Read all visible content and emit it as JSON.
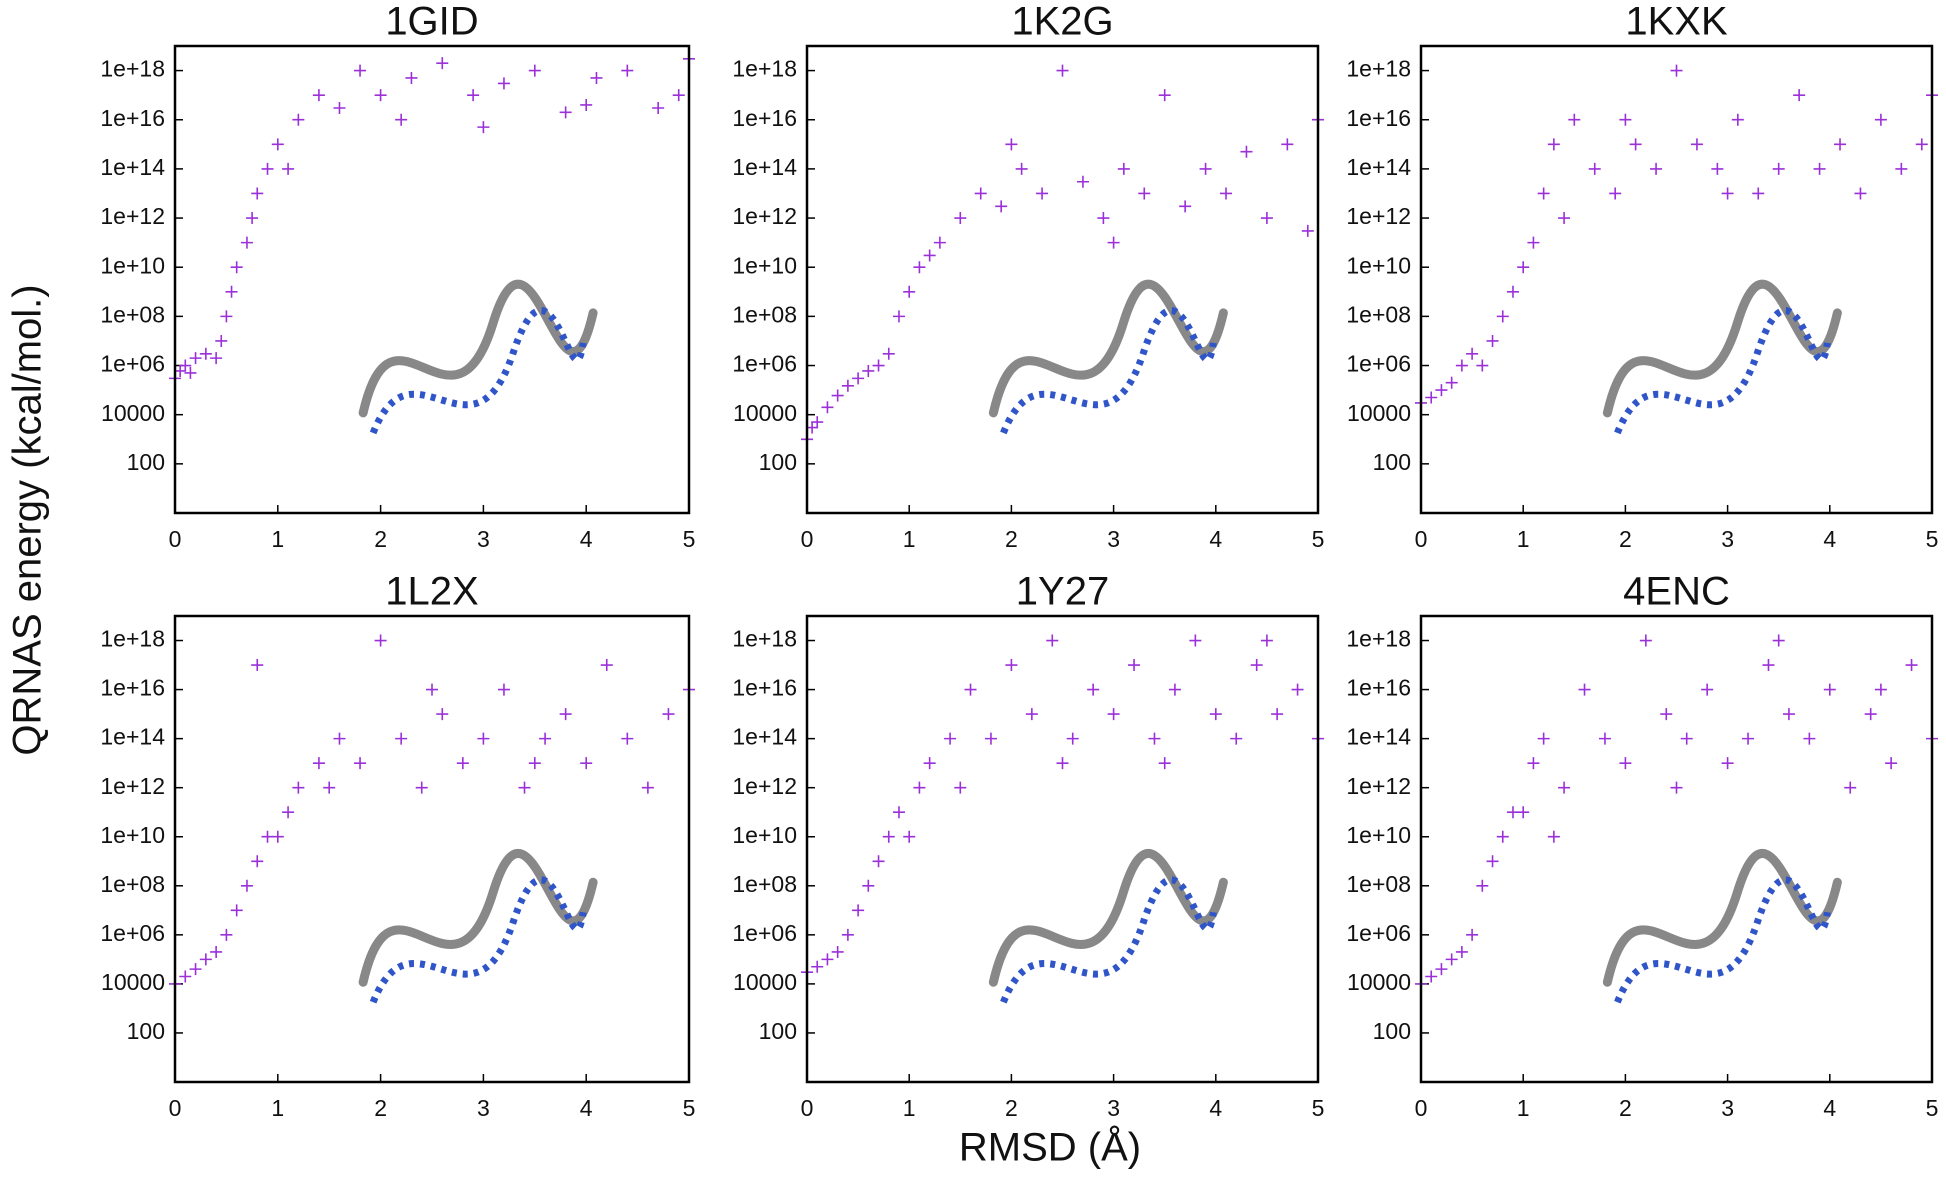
{
  "figure": {
    "xlabel": "RMSD (Å)",
    "ylabel": "QRNAS energy (kcal/mol.)"
  },
  "chart_data": [
    {
      "type": "scatter",
      "title": "1GID",
      "color": "#9b30d9",
      "marker": "+",
      "ylog": true,
      "xlim": [
        0,
        5
      ],
      "ylim": [
        1,
        1e+19
      ],
      "xticks": [
        0,
        1,
        2,
        3,
        4,
        5
      ],
      "yticks": [
        100,
        10000,
        {
          "value": 1000000.0,
          "label": "1e+06"
        },
        {
          "value": 100000000.0,
          "label": "1e+08"
        },
        {
          "value": 10000000000.0,
          "label": "1e+10"
        },
        {
          "value": 1000000000000.0,
          "label": "1e+12"
        },
        {
          "value": 100000000000000.0,
          "label": "1e+14"
        },
        {
          "value": 1e+16,
          "label": "1e+16"
        },
        {
          "value": 1e+18,
          "label": "1e+18"
        }
      ],
      "x": [
        0,
        0.05,
        0.1,
        0.15,
        0.2,
        0.3,
        0.4,
        0.45,
        0.5,
        0.55,
        0.6,
        0.7,
        0.75,
        0.8,
        0.9,
        1.0,
        1.1,
        1.2,
        1.4,
        1.6,
        1.8,
        2.0,
        2.3,
        2.6,
        2.9,
        3.2,
        3.5,
        3.8,
        4.1,
        4.4,
        4.7,
        4.9,
        5.0,
        2.2,
        3.0,
        4.0
      ],
      "values": [
        300000.0,
        600000.0,
        1000000.0,
        500000.0,
        2000000.0,
        3000000.0,
        2000000.0,
        10000000.0,
        100000000.0,
        1000000000.0,
        10000000000.0,
        100000000000.0,
        1000000000000.0,
        10000000000000.0,
        100000000000000.0,
        1000000000000000.0,
        100000000000000.0,
        1e+16,
        1e+17,
        3e+16,
        1e+18,
        1e+17,
        5e+17,
        2e+18,
        1e+17,
        3e+17,
        1e+18,
        2e+16,
        5e+17,
        1e+18,
        3e+16,
        1e+17,
        3e+18,
        1e+16,
        5000000000000000.0,
        4e+16
      ]
    },
    {
      "type": "scatter",
      "title": "1K2G",
      "color": "#9b30d9",
      "marker": "+",
      "ylog": true,
      "xlim": [
        0,
        5
      ],
      "ylim": [
        1,
        1e+19
      ],
      "xticks": [
        0,
        1,
        2,
        3,
        4,
        5
      ],
      "yticks": [
        100,
        10000,
        {
          "value": 1000000.0,
          "label": "1e+06"
        },
        {
          "value": 100000000.0,
          "label": "1e+08"
        },
        {
          "value": 10000000000.0,
          "label": "1e+10"
        },
        {
          "value": 1000000000000.0,
          "label": "1e+12"
        },
        {
          "value": 100000000000000.0,
          "label": "1e+14"
        },
        {
          "value": 1e+16,
          "label": "1e+16"
        },
        {
          "value": 1e+18,
          "label": "1e+18"
        }
      ],
      "x": [
        0,
        0.05,
        0.1,
        0.2,
        0.3,
        0.4,
        0.5,
        0.6,
        0.7,
        0.8,
        0.9,
        1.0,
        1.1,
        1.2,
        1.3,
        1.5,
        1.7,
        1.9,
        2.1,
        2.3,
        2.5,
        2.7,
        2.9,
        3.1,
        3.3,
        3.5,
        3.7,
        3.9,
        4.1,
        4.3,
        4.5,
        4.7,
        4.9,
        5.0,
        2.0,
        3.0
      ],
      "values": [
        1000,
        3000,
        5000,
        20000.0,
        60000.0,
        150000.0,
        300000.0,
        600000.0,
        1000000.0,
        3000000.0,
        100000000.0,
        1000000000.0,
        10000000000.0,
        30000000000.0,
        100000000000.0,
        1000000000000.0,
        10000000000000.0,
        3000000000000.0,
        100000000000000.0,
        10000000000000.0,
        1e+18,
        30000000000000.0,
        1000000000000.0,
        100000000000000.0,
        10000000000000.0,
        1e+17,
        3000000000000.0,
        100000000000000.0,
        10000000000000.0,
        500000000000000.0,
        1000000000000.0,
        1000000000000000.0,
        300000000000.0,
        1e+16,
        1000000000000000.0,
        100000000000.0
      ]
    },
    {
      "type": "scatter",
      "title": "1KXK",
      "color": "#9b30d9",
      "marker": "+",
      "ylog": true,
      "xlim": [
        0,
        5
      ],
      "ylim": [
        1,
        1e+19
      ],
      "xticks": [
        0,
        1,
        2,
        3,
        4,
        5
      ],
      "yticks": [
        100,
        10000,
        {
          "value": 1000000.0,
          "label": "1e+06"
        },
        {
          "value": 100000000.0,
          "label": "1e+08"
        },
        {
          "value": 10000000000.0,
          "label": "1e+10"
        },
        {
          "value": 1000000000000.0,
          "label": "1e+12"
        },
        {
          "value": 100000000000000.0,
          "label": "1e+14"
        },
        {
          "value": 1e+16,
          "label": "1e+16"
        },
        {
          "value": 1e+18,
          "label": "1e+18"
        }
      ],
      "x": [
        0,
        0.1,
        0.2,
        0.3,
        0.4,
        0.5,
        0.6,
        0.7,
        0.8,
        0.9,
        1.0,
        1.1,
        1.2,
        1.3,
        1.5,
        1.7,
        1.9,
        2.1,
        2.3,
        2.5,
        2.7,
        2.9,
        3.1,
        3.3,
        3.5,
        3.7,
        3.9,
        4.1,
        4.3,
        4.5,
        4.7,
        4.9,
        5.0,
        1.4,
        2.0,
        3.0
      ],
      "values": [
        30000.0,
        50000.0,
        100000.0,
        200000.0,
        1000000.0,
        3000000.0,
        1000000.0,
        10000000.0,
        100000000.0,
        1000000000.0,
        10000000000.0,
        100000000000.0,
        10000000000000.0,
        1000000000000000.0,
        1e+16,
        100000000000000.0,
        10000000000000.0,
        1000000000000000.0,
        100000000000000.0,
        1e+18,
        1000000000000000.0,
        100000000000000.0,
        1e+16,
        10000000000000.0,
        100000000000000.0,
        1e+17,
        100000000000000.0,
        1000000000000000.0,
        10000000000000.0,
        1e+16,
        100000000000000.0,
        1000000000000000.0,
        1e+17,
        1000000000000.0,
        1e+16,
        10000000000000.0
      ]
    },
    {
      "type": "scatter",
      "title": "1L2X",
      "color": "#9b30d9",
      "marker": "+",
      "ylog": true,
      "xlim": [
        0,
        5
      ],
      "ylim": [
        1,
        1e+19
      ],
      "xticks": [
        0,
        1,
        2,
        3,
        4,
        5
      ],
      "yticks": [
        100,
        10000,
        {
          "value": 1000000.0,
          "label": "1e+06"
        },
        {
          "value": 100000000.0,
          "label": "1e+08"
        },
        {
          "value": 10000000000.0,
          "label": "1e+10"
        },
        {
          "value": 1000000000000.0,
          "label": "1e+12"
        },
        {
          "value": 100000000000000.0,
          "label": "1e+14"
        },
        {
          "value": 1e+16,
          "label": "1e+16"
        },
        {
          "value": 1e+18,
          "label": "1e+18"
        }
      ],
      "x": [
        0,
        0.1,
        0.2,
        0.3,
        0.4,
        0.5,
        0.6,
        0.7,
        0.8,
        0.9,
        1.0,
        1.1,
        1.2,
        1.4,
        1.6,
        1.8,
        2.0,
        2.2,
        2.4,
        2.6,
        2.8,
        3.0,
        3.2,
        3.4,
        3.6,
        3.8,
        4.0,
        4.2,
        4.4,
        4.6,
        4.8,
        5.0,
        0.8,
        1.5,
        2.5,
        3.5
      ],
      "values": [
        10000.0,
        20000.0,
        40000.0,
        100000.0,
        200000.0,
        1000000.0,
        10000000.0,
        100000000.0,
        1000000000.0,
        10000000000.0,
        10000000000.0,
        100000000000.0,
        1000000000000.0,
        10000000000000.0,
        100000000000000.0,
        10000000000000.0,
        1e+18,
        100000000000000.0,
        1000000000000.0,
        1000000000000000.0,
        10000000000000.0,
        100000000000000.0,
        1e+16,
        1000000000000.0,
        100000000000000.0,
        1000000000000000.0,
        10000000000000.0,
        1e+17,
        100000000000000.0,
        1000000000000.0,
        1000000000000000.0,
        1e+16,
        1e+17,
        1000000000000.0,
        1e+16,
        10000000000000.0
      ]
    },
    {
      "type": "scatter",
      "title": "1Y27",
      "color": "#9b30d9",
      "marker": "+",
      "ylog": true,
      "xlim": [
        0,
        5
      ],
      "ylim": [
        1,
        1e+19
      ],
      "xticks": [
        0,
        1,
        2,
        3,
        4,
        5
      ],
      "yticks": [
        100,
        10000,
        {
          "value": 1000000.0,
          "label": "1e+06"
        },
        {
          "value": 100000000.0,
          "label": "1e+08"
        },
        {
          "value": 10000000000.0,
          "label": "1e+10"
        },
        {
          "value": 1000000000000.0,
          "label": "1e+12"
        },
        {
          "value": 100000000000000.0,
          "label": "1e+14"
        },
        {
          "value": 1e+16,
          "label": "1e+16"
        },
        {
          "value": 1e+18,
          "label": "1e+18"
        }
      ],
      "x": [
        0,
        0.1,
        0.2,
        0.3,
        0.4,
        0.5,
        0.6,
        0.7,
        0.8,
        0.9,
        1.0,
        1.1,
        1.2,
        1.4,
        1.6,
        1.8,
        2.0,
        2.2,
        2.4,
        2.6,
        2.8,
        3.0,
        3.2,
        3.4,
        3.6,
        3.8,
        4.0,
        4.2,
        4.4,
        4.6,
        4.8,
        5.0,
        1.5,
        2.5,
        3.5,
        4.5
      ],
      "values": [
        30000.0,
        50000.0,
        100000.0,
        200000.0,
        1000000.0,
        10000000.0,
        100000000.0,
        1000000000.0,
        10000000000.0,
        100000000000.0,
        10000000000.0,
        1000000000000.0,
        10000000000000.0,
        100000000000000.0,
        1e+16,
        100000000000000.0,
        1e+17,
        1000000000000000.0,
        1e+18,
        100000000000000.0,
        1e+16,
        1000000000000000.0,
        1e+17,
        100000000000000.0,
        1e+16,
        1e+18,
        1000000000000000.0,
        100000000000000.0,
        1e+17,
        1000000000000000.0,
        1e+16,
        100000000000000.0,
        1000000000000.0,
        10000000000000.0,
        10000000000000.0,
        1e+18
      ]
    },
    {
      "type": "scatter",
      "title": "4ENC",
      "color": "#9b30d9",
      "marker": "+",
      "ylog": true,
      "xlim": [
        0,
        5
      ],
      "ylim": [
        1,
        1e+19
      ],
      "xticks": [
        0,
        1,
        2,
        3,
        4,
        5
      ],
      "yticks": [
        100,
        10000,
        {
          "value": 1000000.0,
          "label": "1e+06"
        },
        {
          "value": 100000000.0,
          "label": "1e+08"
        },
        {
          "value": 10000000000.0,
          "label": "1e+10"
        },
        {
          "value": 1000000000000.0,
          "label": "1e+12"
        },
        {
          "value": 100000000000000.0,
          "label": "1e+14"
        },
        {
          "value": 1e+16,
          "label": "1e+16"
        },
        {
          "value": 1e+18,
          "label": "1e+18"
        }
      ],
      "x": [
        0,
        0.1,
        0.2,
        0.3,
        0.4,
        0.5,
        0.6,
        0.7,
        0.8,
        0.9,
        1.0,
        1.1,
        1.2,
        1.4,
        1.6,
        1.8,
        2.0,
        2.2,
        2.4,
        2.6,
        2.8,
        3.0,
        3.2,
        3.4,
        3.6,
        3.8,
        4.0,
        4.2,
        4.4,
        4.6,
        4.8,
        5.0,
        1.3,
        2.5,
        3.5,
        4.5
      ],
      "values": [
        10000.0,
        20000.0,
        40000.0,
        100000.0,
        200000.0,
        1000000.0,
        100000000.0,
        1000000000.0,
        10000000000.0,
        100000000000.0,
        100000000000.0,
        10000000000000.0,
        100000000000000.0,
        1000000000000.0,
        1e+16,
        100000000000000.0,
        10000000000000.0,
        1e+18,
        1000000000000000.0,
        100000000000000.0,
        1e+16,
        10000000000000.0,
        100000000000000.0,
        1e+17,
        1000000000000000.0,
        100000000000000.0,
        1e+16,
        1000000000000.0,
        1000000000000000.0,
        10000000000000.0,
        1e+17,
        100000000000000.0,
        10000000000.0,
        1000000000000.0,
        1e+18,
        1e+16
      ]
    }
  ]
}
